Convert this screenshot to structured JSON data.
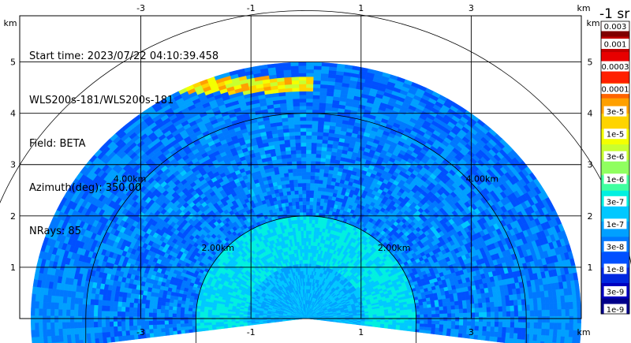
{
  "chart_data": {
    "type": "heatmap",
    "subtype": "lidar-rhi-sector",
    "info_lines": [
      "Start time: 2023/07/22 04:10:39.458",
      "WLS200s-181/WLS200s-181",
      "Field: BETA",
      "Azimuth(deg): 350.00",
      "NRays: 85"
    ],
    "x_unit": "km",
    "y_unit": "km",
    "x_ticks": [
      -3,
      -1,
      1,
      3
    ],
    "y_ticks": [
      1,
      2,
      3,
      4,
      5
    ],
    "xlim": [
      -5.2,
      5.0
    ],
    "ylim": [
      0,
      5.9
    ],
    "range_rings_km": [
      2,
      4,
      6
    ],
    "range_ring_labels": [
      "2.00km",
      "4.00km"
    ],
    "max_range_km": 5.0,
    "colorbar": {
      "title": "-1 sr",
      "labels": [
        "0.003",
        "0.001",
        "0.0003",
        "0.0001",
        "3e-5",
        "1e-5",
        "3e-6",
        "1e-6",
        "3e-7",
        "1e-7",
        "3e-8",
        "1e-8",
        "3e-9",
        "1e-9"
      ],
      "colors": [
        "#800000",
        "#c00000",
        "#e80000",
        "#ff2000",
        "#ff6400",
        "#ffa000",
        "#ffd400",
        "#f4ff00",
        "#c8ff30",
        "#90ff60",
        "#40ffa0",
        "#00f0e0",
        "#00c8ff",
        "#00a0ff",
        "#0078ff",
        "#0050ff",
        "#0028e0",
        "#0000c0",
        "#00008a"
      ]
    },
    "layers": [
      {
        "name": "near",
        "r_range": [
          0,
          1.1
        ],
        "level": 12
      },
      {
        "name": "inner",
        "r_range": [
          1.1,
          2.0
        ],
        "level": 12
      },
      {
        "name": "middle",
        "r_range": [
          2.0,
          4.0
        ],
        "level": 14
      },
      {
        "name": "outer",
        "r_range": [
          4.0,
          5.0
        ],
        "level": 14
      },
      {
        "name": "aerosol-layer",
        "x_range": [
          -2.6,
          0.1
        ],
        "y_range": [
          4.4,
          4.7
        ],
        "level": 6
      }
    ]
  }
}
